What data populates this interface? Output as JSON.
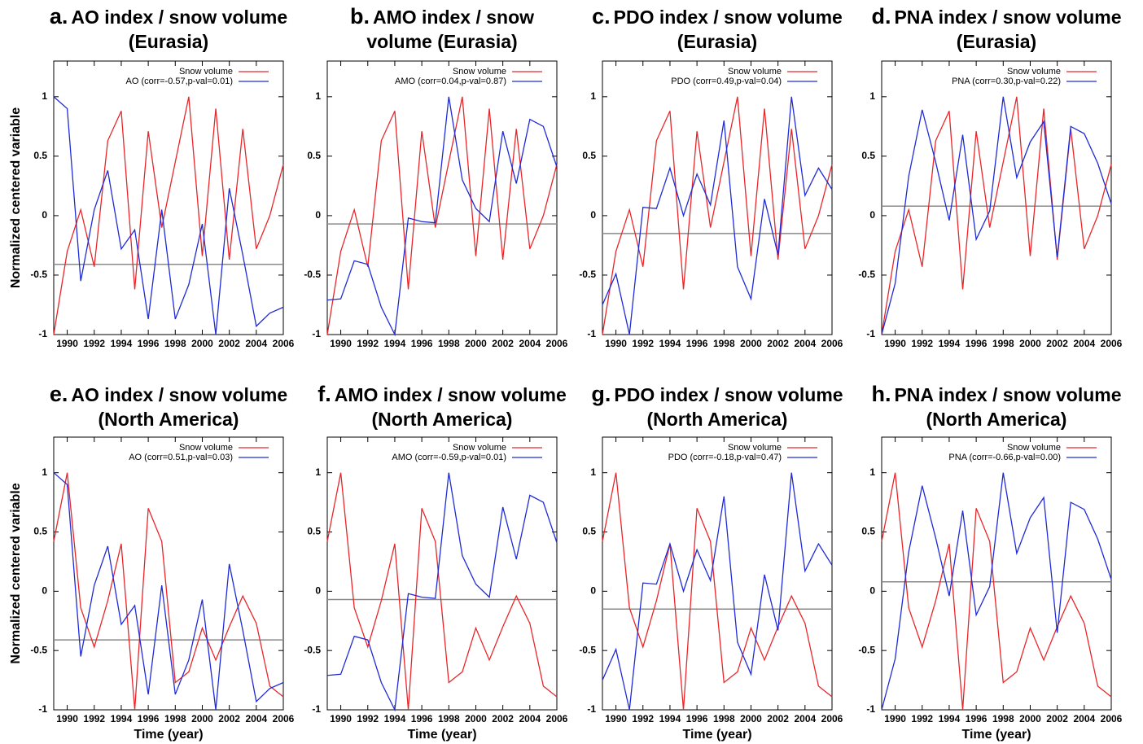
{
  "chart_data": [
    {
      "type": "line",
      "label": "a.",
      "title": "AO index / snow volume (Eurasia)",
      "ylabel": "Normalized centered variable",
      "x": [
        1989,
        1990,
        1991,
        1992,
        1993,
        1994,
        1995,
        1996,
        1997,
        1998,
        1999,
        2000,
        2001,
        2002,
        2003,
        2004,
        2005,
        2006
      ],
      "series": [
        {
          "name": "Snow volume",
          "color": "#e8262a",
          "values": [
            -1,
            -0.3,
            0.05,
            -0.43,
            0.63,
            0.88,
            -0.62,
            0.71,
            -0.1,
            0.45,
            1,
            -0.34,
            0.9,
            -0.37,
            0.73,
            -0.28,
            0,
            0.43
          ]
        },
        {
          "name": "AO (corr=-0.57,p-val=0.01)",
          "color": "#1f2bd6",
          "values": [
            1,
            0.9,
            -0.55,
            0.05,
            0.38,
            -0.28,
            -0.12,
            -0.87,
            0.05,
            -0.87,
            -0.58,
            -0.07,
            -1,
            0.23,
            -0.33,
            -0.93,
            -0.82,
            -0.77
          ]
        }
      ],
      "hline": -0.41,
      "hline_color": "#8a8a8a",
      "xlim": [
        1989,
        2006
      ],
      "ylim": [
        -1,
        1.3
      ],
      "xticks": [
        1990,
        1992,
        1994,
        1996,
        1998,
        2000,
        2002,
        2004,
        2006
      ],
      "yticks": [
        -1,
        -0.5,
        0,
        0.5,
        1
      ]
    },
    {
      "type": "line",
      "label": "b.",
      "title": "AMO index / snow volume (Eurasia)",
      "x": [
        1989,
        1990,
        1991,
        1992,
        1993,
        1994,
        1995,
        1996,
        1997,
        1998,
        1999,
        2000,
        2001,
        2002,
        2003,
        2004,
        2005,
        2006
      ],
      "series": [
        {
          "name": "Snow volume",
          "color": "#e8262a",
          "values": [
            -1,
            -0.3,
            0.05,
            -0.43,
            0.63,
            0.88,
            -0.62,
            0.71,
            -0.1,
            0.45,
            1,
            -0.34,
            0.9,
            -0.37,
            0.73,
            -0.28,
            0,
            0.43
          ]
        },
        {
          "name": "AMO (corr=0.04,p-val=0.87)",
          "color": "#1f2bd6",
          "values": [
            -0.71,
            -0.7,
            -0.38,
            -0.41,
            -0.77,
            -1,
            -0.02,
            -0.05,
            -0.06,
            1,
            0.3,
            0.06,
            -0.05,
            0.71,
            0.27,
            0.81,
            0.75,
            0.41
          ]
        }
      ],
      "hline": -0.07,
      "hline_color": "#8a8a8a",
      "xlim": [
        1989,
        2006
      ],
      "ylim": [
        -1,
        1.3
      ],
      "xticks": [
        1990,
        1992,
        1994,
        1996,
        1998,
        2000,
        2002,
        2004,
        2006
      ],
      "yticks": [
        -1,
        -0.5,
        0,
        0.5,
        1
      ]
    },
    {
      "type": "line",
      "label": "c.",
      "title": "PDO index / snow volume (Eurasia)",
      "x": [
        1989,
        1990,
        1991,
        1992,
        1993,
        1994,
        1995,
        1996,
        1997,
        1998,
        1999,
        2000,
        2001,
        2002,
        2003,
        2004,
        2005,
        2006
      ],
      "series": [
        {
          "name": "Snow volume",
          "color": "#e8262a",
          "values": [
            -1,
            -0.3,
            0.05,
            -0.43,
            0.63,
            0.88,
            -0.62,
            0.71,
            -0.1,
            0.45,
            1,
            -0.34,
            0.9,
            -0.37,
            0.73,
            -0.28,
            0,
            0.43
          ]
        },
        {
          "name": "PDO (corr=0.49,p-val=0.04)",
          "color": "#1f2bd6",
          "values": [
            -0.75,
            -0.49,
            -1,
            0.07,
            0.06,
            0.4,
            0,
            0.35,
            0.09,
            0.8,
            -0.43,
            -0.7,
            0.14,
            -0.33,
            1,
            0.17,
            0.4,
            0.22
          ]
        }
      ],
      "hline": -0.15,
      "hline_color": "#8a8a8a",
      "xlim": [
        1989,
        2006
      ],
      "ylim": [
        -1,
        1.3
      ],
      "xticks": [
        1990,
        1992,
        1994,
        1996,
        1998,
        2000,
        2002,
        2004,
        2006
      ],
      "yticks": [
        -1,
        -0.5,
        0,
        0.5,
        1
      ]
    },
    {
      "type": "line",
      "label": "d.",
      "title": "PNA index / snow volume (Eurasia)",
      "x": [
        1989,
        1990,
        1991,
        1992,
        1993,
        1994,
        1995,
        1996,
        1997,
        1998,
        1999,
        2000,
        2001,
        2002,
        2003,
        2004,
        2005,
        2006
      ],
      "series": [
        {
          "name": "Snow volume",
          "color": "#e8262a",
          "values": [
            -1,
            -0.3,
            0.05,
            -0.43,
            0.63,
            0.88,
            -0.62,
            0.71,
            -0.1,
            0.45,
            1,
            -0.34,
            0.9,
            -0.37,
            0.73,
            -0.28,
            0,
            0.43
          ]
        },
        {
          "name": "PNA (corr=0.30,p-val=0.22)",
          "color": "#1f2bd6",
          "values": [
            -1,
            -0.57,
            0.33,
            0.89,
            0.45,
            -0.04,
            0.68,
            -0.2,
            0.04,
            1,
            0.32,
            0.62,
            0.79,
            -0.35,
            0.75,
            0.69,
            0.44,
            0.1
          ]
        }
      ],
      "hline": 0.08,
      "hline_color": "#8a8a8a",
      "xlim": [
        1989,
        2006
      ],
      "ylim": [
        -1,
        1.3
      ],
      "xticks": [
        1990,
        1992,
        1994,
        1996,
        1998,
        2000,
        2002,
        2004,
        2006
      ],
      "yticks": [
        -1,
        -0.5,
        0,
        0.5,
        1
      ]
    },
    {
      "type": "line",
      "label": "e.",
      "title": "AO index / snow volume (North America)",
      "ylabel": "Normalized centered variable",
      "xlabel": "Time (year)",
      "x": [
        1989,
        1990,
        1991,
        1992,
        1993,
        1994,
        1995,
        1996,
        1997,
        1998,
        1999,
        2000,
        2001,
        2002,
        2003,
        2004,
        2005,
        2006
      ],
      "series": [
        {
          "name": "Snow volume",
          "color": "#e8262a",
          "values": [
            0.42,
            1,
            -0.14,
            -0.47,
            -0.08,
            0.4,
            -1,
            0.7,
            0.42,
            -0.77,
            -0.68,
            -0.31,
            -0.58,
            -0.3,
            -0.04,
            -0.27,
            -0.8,
            -0.89
          ]
        },
        {
          "name": "AO (corr=0.51,p-val=0.03)",
          "color": "#1f2bd6",
          "values": [
            1,
            0.9,
            -0.55,
            0.05,
            0.38,
            -0.28,
            -0.12,
            -0.87,
            0.05,
            -0.87,
            -0.58,
            -0.07,
            -1,
            0.23,
            -0.33,
            -0.93,
            -0.82,
            -0.77
          ]
        }
      ],
      "hline": -0.41,
      "hline_color": "#8a8a8a",
      "xlim": [
        1989,
        2006
      ],
      "ylim": [
        -1,
        1.3
      ],
      "xticks": [
        1990,
        1992,
        1994,
        1996,
        1998,
        2000,
        2002,
        2004,
        2006
      ],
      "yticks": [
        -1,
        -0.5,
        0,
        0.5,
        1
      ]
    },
    {
      "type": "line",
      "label": "f.",
      "title": "AMO index / snow volume (North America)",
      "xlabel": "Time (year)",
      "x": [
        1989,
        1990,
        1991,
        1992,
        1993,
        1994,
        1995,
        1996,
        1997,
        1998,
        1999,
        2000,
        2001,
        2002,
        2003,
        2004,
        2005,
        2006
      ],
      "series": [
        {
          "name": "Snow volume",
          "color": "#e8262a",
          "values": [
            0.42,
            1,
            -0.14,
            -0.47,
            -0.08,
            0.4,
            -1,
            0.7,
            0.42,
            -0.77,
            -0.68,
            -0.31,
            -0.58,
            -0.3,
            -0.04,
            -0.27,
            -0.8,
            -0.89
          ]
        },
        {
          "name": "AMO (corr=-0.59,p-val=0.01)",
          "color": "#1f2bd6",
          "values": [
            -0.71,
            -0.7,
            -0.38,
            -0.41,
            -0.77,
            -1,
            -0.02,
            -0.05,
            -0.06,
            1,
            0.3,
            0.06,
            -0.05,
            0.71,
            0.27,
            0.81,
            0.75,
            0.41
          ]
        }
      ],
      "hline": -0.07,
      "hline_color": "#8a8a8a",
      "xlim": [
        1989,
        2006
      ],
      "ylim": [
        -1,
        1.3
      ],
      "xticks": [
        1990,
        1992,
        1994,
        1996,
        1998,
        2000,
        2002,
        2004,
        2006
      ],
      "yticks": [
        -1,
        -0.5,
        0,
        0.5,
        1
      ]
    },
    {
      "type": "line",
      "label": "g.",
      "title": "PDO index / snow volume (North America)",
      "xlabel": "Time (year)",
      "x": [
        1989,
        1990,
        1991,
        1992,
        1993,
        1994,
        1995,
        1996,
        1997,
        1998,
        1999,
        2000,
        2001,
        2002,
        2003,
        2004,
        2005,
        2006
      ],
      "series": [
        {
          "name": "Snow volume",
          "color": "#e8262a",
          "values": [
            0.42,
            1,
            -0.14,
            -0.47,
            -0.08,
            0.4,
            -1,
            0.7,
            0.42,
            -0.77,
            -0.68,
            -0.31,
            -0.58,
            -0.3,
            -0.04,
            -0.27,
            -0.8,
            -0.89
          ]
        },
        {
          "name": "PDO (corr=-0.18,p-val=0.47)",
          "color": "#1f2bd6",
          "values": [
            -0.75,
            -0.49,
            -1,
            0.07,
            0.06,
            0.4,
            0,
            0.35,
            0.09,
            0.8,
            -0.43,
            -0.7,
            0.14,
            -0.33,
            1,
            0.17,
            0.4,
            0.22
          ]
        }
      ],
      "hline": -0.15,
      "hline_color": "#8a8a8a",
      "xlim": [
        1989,
        2006
      ],
      "ylim": [
        -1,
        1.3
      ],
      "xticks": [
        1990,
        1992,
        1994,
        1996,
        1998,
        2000,
        2002,
        2004,
        2006
      ],
      "yticks": [
        -1,
        -0.5,
        0,
        0.5,
        1
      ]
    },
    {
      "type": "line",
      "label": "h.",
      "title": "PNA index / snow volume (North America)",
      "xlabel": "Time (year)",
      "x": [
        1989,
        1990,
        1991,
        1992,
        1993,
        1994,
        1995,
        1996,
        1997,
        1998,
        1999,
        2000,
        2001,
        2002,
        2003,
        2004,
        2005,
        2006
      ],
      "series": [
        {
          "name": "Snow volume",
          "color": "#e8262a",
          "values": [
            0.42,
            1,
            -0.14,
            -0.47,
            -0.08,
            0.4,
            -1,
            0.7,
            0.42,
            -0.77,
            -0.68,
            -0.31,
            -0.58,
            -0.3,
            -0.04,
            -0.27,
            -0.8,
            -0.89
          ]
        },
        {
          "name": "PNA (corr=-0.66,p-val=0.00)",
          "color": "#1f2bd6",
          "values": [
            -1,
            -0.57,
            0.33,
            0.89,
            0.45,
            -0.04,
            0.68,
            -0.2,
            0.04,
            1,
            0.32,
            0.62,
            0.79,
            -0.35,
            0.75,
            0.69,
            0.44,
            0.1
          ]
        }
      ],
      "hline": 0.08,
      "hline_color": "#8a8a8a",
      "xlim": [
        1989,
        2006
      ],
      "ylim": [
        -1,
        1.3
      ],
      "xticks": [
        1990,
        1992,
        1994,
        1996,
        1998,
        2000,
        2002,
        2004,
        2006
      ],
      "yticks": [
        -1,
        -0.5,
        0,
        0.5,
        1
      ]
    }
  ]
}
